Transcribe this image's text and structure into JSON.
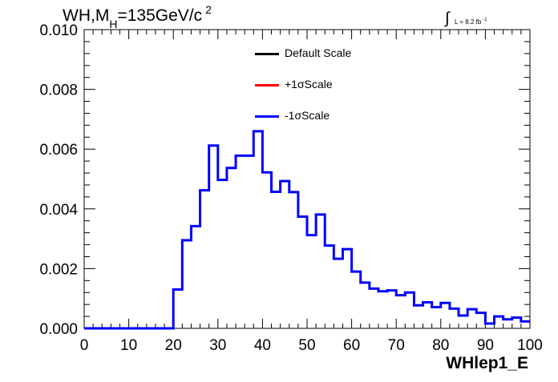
{
  "title": {
    "prefix": "WH,M",
    "sub": "H",
    "main": "=135GeV/c",
    "sup": "2"
  },
  "luminosity": {
    "integral": "∫",
    "text": "L = 8.2 fb",
    "sup": "-1"
  },
  "legend": [
    {
      "label": "Default Scale",
      "color": "#000000"
    },
    {
      "label": "+1σScale",
      "color": "#ff0000"
    },
    {
      "label": "-1σScale",
      "color": "#0000ff"
    }
  ],
  "chart_data": {
    "type": "line",
    "xlabel": "WHlep1_E",
    "ylabel": "",
    "xlim": [
      0,
      100
    ],
    "ylim": [
      0,
      0.01
    ],
    "x_ticks": [
      "0",
      "10",
      "20",
      "30",
      "40",
      "50",
      "60",
      "70",
      "80",
      "90",
      "100"
    ],
    "y_ticks": [
      "0.000",
      "0.002",
      "0.004",
      "0.006",
      "0.008",
      "0.010"
    ],
    "bin_edges": [
      0,
      20,
      22,
      24,
      26,
      28,
      30,
      32,
      34,
      36,
      38,
      40,
      42,
      44,
      46,
      48,
      50,
      52,
      54,
      56,
      58,
      60,
      62,
      64,
      66,
      68,
      70,
      72,
      74,
      76,
      78,
      80,
      82,
      84,
      86,
      88,
      90,
      92,
      94,
      96,
      98,
      100
    ],
    "series": [
      {
        "name": "-1σScale",
        "color": "#0000ff",
        "values": [
          0,
          0.0013,
          0.00295,
          0.00342,
          0.00462,
          0.00612,
          0.00497,
          0.00537,
          0.00578,
          0.00578,
          0.0066,
          0.00522,
          0.00457,
          0.00493,
          0.00456,
          0.00374,
          0.00312,
          0.00381,
          0.00277,
          0.00233,
          0.00265,
          0.0019,
          0.00153,
          0.00133,
          0.00124,
          0.00127,
          0.00111,
          0.0012,
          0.00077,
          0.00087,
          0.00071,
          0.00085,
          0.00066,
          0.00043,
          0.00064,
          0.00052,
          0.00016,
          0.0004,
          0.0003,
          0.00036,
          0.00023
        ]
      }
    ]
  }
}
